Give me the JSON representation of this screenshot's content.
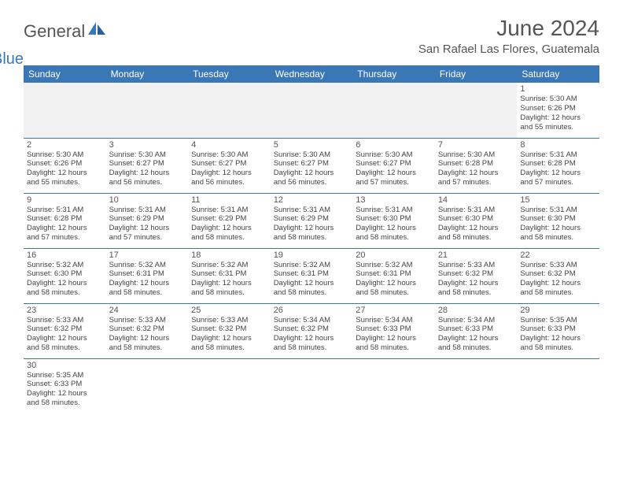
{
  "logo": {
    "word1": "General",
    "word2": "Blue"
  },
  "title": "June 2024",
  "location": "San Rafael Las Flores, Guatemala",
  "dow": [
    "Sunday",
    "Monday",
    "Tuesday",
    "Wednesday",
    "Thursday",
    "Friday",
    "Saturday"
  ],
  "colors": {
    "header_bg": "#3a77b7",
    "header_fg": "#ffffff",
    "border": "#3a77b7",
    "empty_bg": "#f2f2f2",
    "text": "#444444",
    "title": "#555555"
  },
  "weeks": [
    [
      null,
      null,
      null,
      null,
      null,
      null,
      {
        "n": "1",
        "sr": "Sunrise: 5:30 AM",
        "ss": "Sunset: 6:26 PM",
        "d1": "Daylight: 12 hours",
        "d2": "and 55 minutes."
      }
    ],
    [
      {
        "n": "2",
        "sr": "Sunrise: 5:30 AM",
        "ss": "Sunset: 6:26 PM",
        "d1": "Daylight: 12 hours",
        "d2": "and 55 minutes."
      },
      {
        "n": "3",
        "sr": "Sunrise: 5:30 AM",
        "ss": "Sunset: 6:27 PM",
        "d1": "Daylight: 12 hours",
        "d2": "and 56 minutes."
      },
      {
        "n": "4",
        "sr": "Sunrise: 5:30 AM",
        "ss": "Sunset: 6:27 PM",
        "d1": "Daylight: 12 hours",
        "d2": "and 56 minutes."
      },
      {
        "n": "5",
        "sr": "Sunrise: 5:30 AM",
        "ss": "Sunset: 6:27 PM",
        "d1": "Daylight: 12 hours",
        "d2": "and 56 minutes."
      },
      {
        "n": "6",
        "sr": "Sunrise: 5:30 AM",
        "ss": "Sunset: 6:27 PM",
        "d1": "Daylight: 12 hours",
        "d2": "and 57 minutes."
      },
      {
        "n": "7",
        "sr": "Sunrise: 5:30 AM",
        "ss": "Sunset: 6:28 PM",
        "d1": "Daylight: 12 hours",
        "d2": "and 57 minutes."
      },
      {
        "n": "8",
        "sr": "Sunrise: 5:31 AM",
        "ss": "Sunset: 6:28 PM",
        "d1": "Daylight: 12 hours",
        "d2": "and 57 minutes."
      }
    ],
    [
      {
        "n": "9",
        "sr": "Sunrise: 5:31 AM",
        "ss": "Sunset: 6:28 PM",
        "d1": "Daylight: 12 hours",
        "d2": "and 57 minutes."
      },
      {
        "n": "10",
        "sr": "Sunrise: 5:31 AM",
        "ss": "Sunset: 6:29 PM",
        "d1": "Daylight: 12 hours",
        "d2": "and 57 minutes."
      },
      {
        "n": "11",
        "sr": "Sunrise: 5:31 AM",
        "ss": "Sunset: 6:29 PM",
        "d1": "Daylight: 12 hours",
        "d2": "and 58 minutes."
      },
      {
        "n": "12",
        "sr": "Sunrise: 5:31 AM",
        "ss": "Sunset: 6:29 PM",
        "d1": "Daylight: 12 hours",
        "d2": "and 58 minutes."
      },
      {
        "n": "13",
        "sr": "Sunrise: 5:31 AM",
        "ss": "Sunset: 6:30 PM",
        "d1": "Daylight: 12 hours",
        "d2": "and 58 minutes."
      },
      {
        "n": "14",
        "sr": "Sunrise: 5:31 AM",
        "ss": "Sunset: 6:30 PM",
        "d1": "Daylight: 12 hours",
        "d2": "and 58 minutes."
      },
      {
        "n": "15",
        "sr": "Sunrise: 5:31 AM",
        "ss": "Sunset: 6:30 PM",
        "d1": "Daylight: 12 hours",
        "d2": "and 58 minutes."
      }
    ],
    [
      {
        "n": "16",
        "sr": "Sunrise: 5:32 AM",
        "ss": "Sunset: 6:30 PM",
        "d1": "Daylight: 12 hours",
        "d2": "and 58 minutes."
      },
      {
        "n": "17",
        "sr": "Sunrise: 5:32 AM",
        "ss": "Sunset: 6:31 PM",
        "d1": "Daylight: 12 hours",
        "d2": "and 58 minutes."
      },
      {
        "n": "18",
        "sr": "Sunrise: 5:32 AM",
        "ss": "Sunset: 6:31 PM",
        "d1": "Daylight: 12 hours",
        "d2": "and 58 minutes."
      },
      {
        "n": "19",
        "sr": "Sunrise: 5:32 AM",
        "ss": "Sunset: 6:31 PM",
        "d1": "Daylight: 12 hours",
        "d2": "and 58 minutes."
      },
      {
        "n": "20",
        "sr": "Sunrise: 5:32 AM",
        "ss": "Sunset: 6:31 PM",
        "d1": "Daylight: 12 hours",
        "d2": "and 58 minutes."
      },
      {
        "n": "21",
        "sr": "Sunrise: 5:33 AM",
        "ss": "Sunset: 6:32 PM",
        "d1": "Daylight: 12 hours",
        "d2": "and 58 minutes."
      },
      {
        "n": "22",
        "sr": "Sunrise: 5:33 AM",
        "ss": "Sunset: 6:32 PM",
        "d1": "Daylight: 12 hours",
        "d2": "and 58 minutes."
      }
    ],
    [
      {
        "n": "23",
        "sr": "Sunrise: 5:33 AM",
        "ss": "Sunset: 6:32 PM",
        "d1": "Daylight: 12 hours",
        "d2": "and 58 minutes."
      },
      {
        "n": "24",
        "sr": "Sunrise: 5:33 AM",
        "ss": "Sunset: 6:32 PM",
        "d1": "Daylight: 12 hours",
        "d2": "and 58 minutes."
      },
      {
        "n": "25",
        "sr": "Sunrise: 5:33 AM",
        "ss": "Sunset: 6:32 PM",
        "d1": "Daylight: 12 hours",
        "d2": "and 58 minutes."
      },
      {
        "n": "26",
        "sr": "Sunrise: 5:34 AM",
        "ss": "Sunset: 6:32 PM",
        "d1": "Daylight: 12 hours",
        "d2": "and 58 minutes."
      },
      {
        "n": "27",
        "sr": "Sunrise: 5:34 AM",
        "ss": "Sunset: 6:33 PM",
        "d1": "Daylight: 12 hours",
        "d2": "and 58 minutes."
      },
      {
        "n": "28",
        "sr": "Sunrise: 5:34 AM",
        "ss": "Sunset: 6:33 PM",
        "d1": "Daylight: 12 hours",
        "d2": "and 58 minutes."
      },
      {
        "n": "29",
        "sr": "Sunrise: 5:35 AM",
        "ss": "Sunset: 6:33 PM",
        "d1": "Daylight: 12 hours",
        "d2": "and 58 minutes."
      }
    ],
    [
      {
        "n": "30",
        "sr": "Sunrise: 5:35 AM",
        "ss": "Sunset: 6:33 PM",
        "d1": "Daylight: 12 hours",
        "d2": "and 58 minutes."
      },
      null,
      null,
      null,
      null,
      null,
      null
    ]
  ]
}
